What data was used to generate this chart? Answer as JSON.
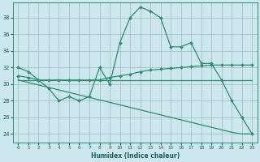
{
  "xlabel": "Humidex (Indice chaleur)",
  "background_color": "#cce8ee",
  "grid_color": "#99bbbb",
  "line_color": "#2e8b6e",
  "xlim": [
    -0.5,
    23.5
  ],
  "ylim": [
    23.0,
    39.8
  ],
  "yticks": [
    24,
    26,
    28,
    30,
    32,
    34,
    36,
    38
  ],
  "xticks": [
    0,
    1,
    2,
    3,
    4,
    5,
    6,
    7,
    8,
    9,
    10,
    11,
    12,
    13,
    14,
    15,
    16,
    17,
    18,
    19,
    20,
    21,
    22,
    23
  ],
  "series": [
    {
      "x": [
        0,
        1,
        2,
        3,
        4,
        5,
        6,
        7,
        8,
        9,
        10,
        11,
        12,
        13,
        14,
        15,
        16,
        17,
        18,
        19,
        20,
        21,
        22,
        23
      ],
      "y": [
        32,
        31.5,
        30.5,
        29.5,
        28,
        28.5,
        28,
        28.5,
        32,
        30,
        35,
        38,
        39.3,
        38.8,
        38,
        34.5,
        34.5,
        35,
        32.5,
        32.5,
        30.5,
        28,
        26,
        24
      ],
      "markers": true
    },
    {
      "x": [
        0,
        1,
        2,
        3,
        4,
        5,
        6,
        7,
        8,
        9,
        10,
        11,
        12,
        13,
        14,
        15,
        16,
        17,
        18,
        19,
        20,
        21,
        22,
        23
      ],
      "y": [
        31,
        30.8,
        30.5,
        30.5,
        30.5,
        30.5,
        30.5,
        30.5,
        30.5,
        30.8,
        31,
        31.2,
        31.5,
        31.7,
        31.8,
        31.9,
        32.0,
        32.1,
        32.2,
        32.3,
        32.3,
        32.3,
        32.3,
        32.3
      ],
      "markers": true
    },
    {
      "x": [
        0,
        1,
        2,
        3,
        4,
        5,
        6,
        7,
        8,
        9,
        10,
        11,
        12,
        13,
        14,
        15,
        16,
        17,
        18,
        19,
        20,
        21,
        22,
        23
      ],
      "y": [
        30.5,
        30.5,
        30.5,
        30.5,
        30.5,
        30.5,
        30.5,
        30.5,
        30.5,
        30.5,
        30.5,
        30.5,
        30.5,
        30.5,
        30.5,
        30.5,
        30.5,
        30.5,
        30.5,
        30.5,
        30.5,
        30.5,
        30.5,
        30.5
      ],
      "markers": false
    },
    {
      "x": [
        0,
        1,
        2,
        3,
        4,
        5,
        6,
        7,
        8,
        9,
        10,
        11,
        12,
        13,
        14,
        15,
        16,
        17,
        18,
        19,
        20,
        21,
        22,
        23
      ],
      "y": [
        30.5,
        30.2,
        29.9,
        29.6,
        29.3,
        29.0,
        28.7,
        28.4,
        28.1,
        27.8,
        27.5,
        27.2,
        26.9,
        26.6,
        26.3,
        26.0,
        25.7,
        25.4,
        25.1,
        24.8,
        24.5,
        24.2,
        24.0,
        24.0
      ],
      "markers": false
    }
  ]
}
